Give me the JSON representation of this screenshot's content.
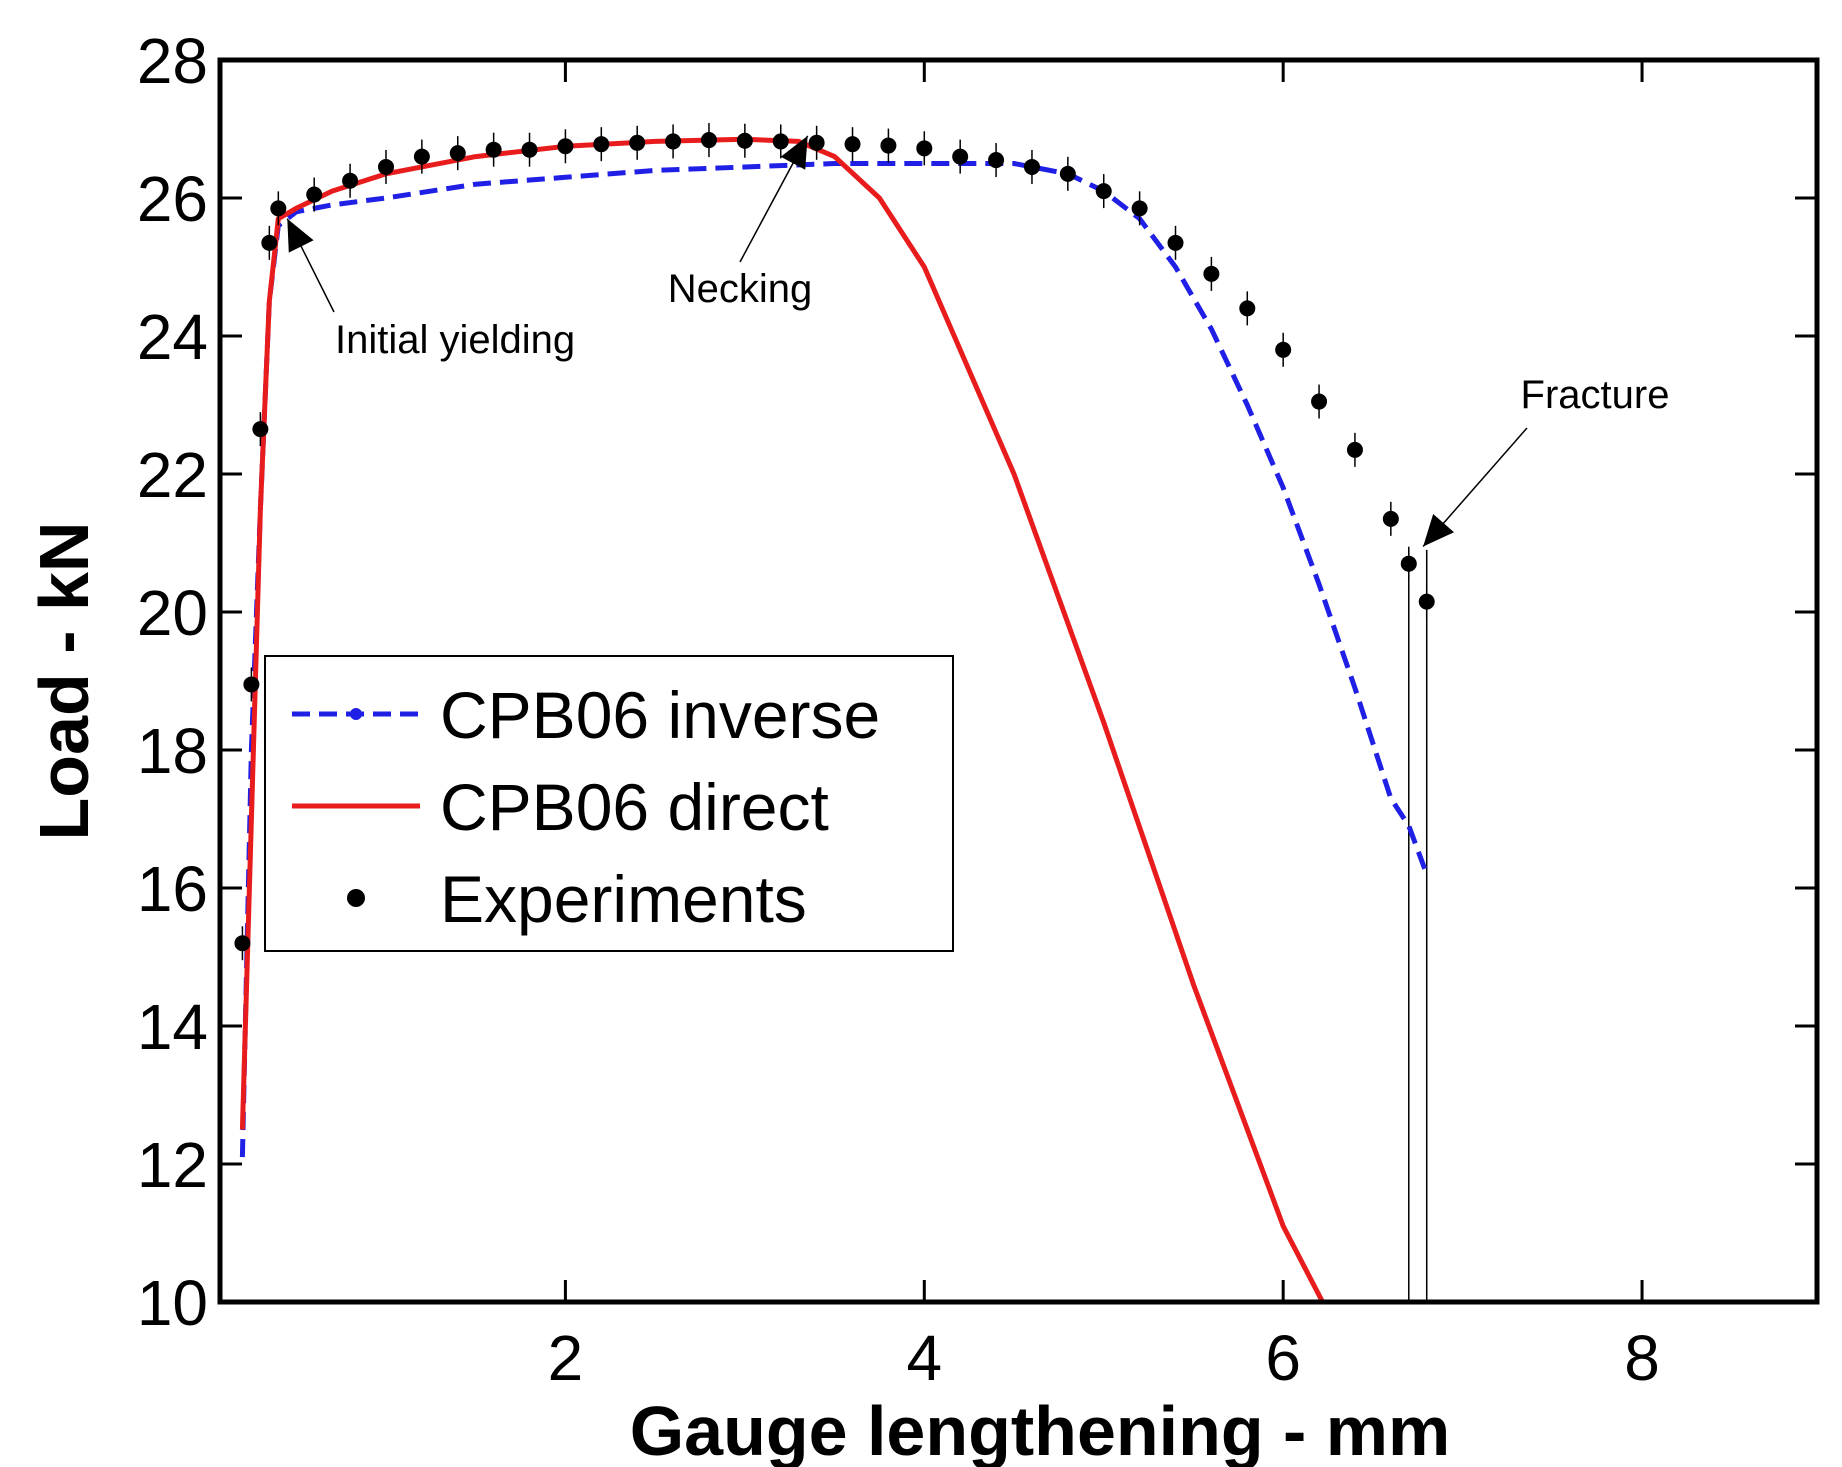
{
  "chart_data": {
    "type": "line",
    "title": "",
    "xlabel": "Gauge lengthening - mm",
    "ylabel": "Load - kN",
    "xlim": [
      0,
      9
    ],
    "ylim": [
      10,
      28
    ],
    "xticks": [
      2,
      4,
      6,
      8
    ],
    "yticks": [
      10,
      12,
      14,
      16,
      18,
      20,
      22,
      24,
      26,
      28
    ],
    "grid": false,
    "legend_position": "center-left",
    "series": [
      {
        "name": "CPB06 inverse",
        "style": "dashed",
        "color": "#1f1fe6",
        "x": [
          0.2,
          0.25,
          0.3,
          0.35,
          0.4,
          0.5,
          0.7,
          1.0,
          1.5,
          2.0,
          2.5,
          3.0,
          3.5,
          4.0,
          4.5,
          4.8,
          5.0,
          5.2,
          5.4,
          5.6,
          5.8,
          6.0,
          6.2,
          6.4,
          6.6,
          6.7,
          6.8
        ],
        "y": [
          12.1,
          18.0,
          21.5,
          24.5,
          25.6,
          25.8,
          25.9,
          26.0,
          26.2,
          26.3,
          26.4,
          26.45,
          26.5,
          26.5,
          26.5,
          26.35,
          26.1,
          25.7,
          25.0,
          24.1,
          23.0,
          21.8,
          20.4,
          18.9,
          17.3,
          16.9,
          16.2
        ]
      },
      {
        "name": "CPB06 direct",
        "style": "solid",
        "color": "#e81c1c",
        "x": [
          0.2,
          0.25,
          0.3,
          0.35,
          0.4,
          0.5,
          0.7,
          1.0,
          1.5,
          2.0,
          2.5,
          3.0,
          3.3,
          3.5,
          3.75,
          4.0,
          4.5,
          5.0,
          5.5,
          6.0,
          6.22
        ],
        "y": [
          12.5,
          17.0,
          21.5,
          24.5,
          25.7,
          25.85,
          26.1,
          26.35,
          26.6,
          26.75,
          26.82,
          26.85,
          26.82,
          26.6,
          26.0,
          25.0,
          22.0,
          18.4,
          14.6,
          11.1,
          10.0
        ]
      },
      {
        "name": "Experiments",
        "style": "markers",
        "color": "#000000",
        "x": [
          0.2,
          0.25,
          0.3,
          0.35,
          0.4,
          0.6,
          0.8,
          1.0,
          1.2,
          1.4,
          1.6,
          1.8,
          2.0,
          2.2,
          2.4,
          2.6,
          2.8,
          3.0,
          3.2,
          3.4,
          3.6,
          3.8,
          4.0,
          4.2,
          4.4,
          4.6,
          4.8,
          5.0,
          5.2,
          5.4,
          5.6,
          5.8,
          6.0,
          6.2,
          6.4,
          6.6,
          6.7,
          6.8
        ],
        "y": [
          15.2,
          18.95,
          22.65,
          25.35,
          25.85,
          26.05,
          26.25,
          26.45,
          26.6,
          26.65,
          26.7,
          26.7,
          26.75,
          26.78,
          26.8,
          26.82,
          26.84,
          26.83,
          26.82,
          26.8,
          26.78,
          26.76,
          26.72,
          26.6,
          26.55,
          26.45,
          26.35,
          26.1,
          25.85,
          25.35,
          24.9,
          24.4,
          23.8,
          23.05,
          22.35,
          21.35,
          20.7,
          20.15
        ]
      }
    ],
    "legend": [
      {
        "label": "CPB06 inverse"
      },
      {
        "label": "CPB06 direct"
      },
      {
        "label": "Experiments"
      }
    ],
    "annotations": [
      {
        "text": "Initial yielding",
        "target_x": 0.45,
        "target_y": 25.7
      },
      {
        "text": "Necking",
        "target_x": 3.35,
        "target_y": 26.9
      },
      {
        "text": "Fracture",
        "target_x": 6.78,
        "target_y": 20.95
      }
    ]
  }
}
